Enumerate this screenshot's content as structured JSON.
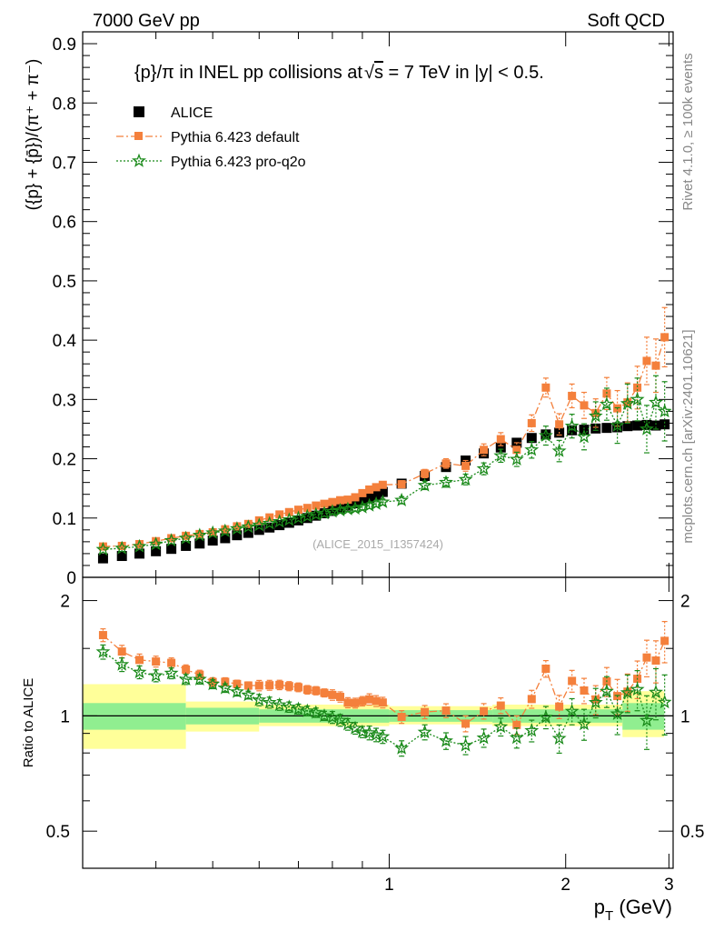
{
  "header": {
    "left": "7000 GeV pp",
    "right": "Soft QCD"
  },
  "side_labels": {
    "rivet": "Rivet 4.1.0, ≥ 100k events",
    "mcplots": "mcplots.cern.ch [arXiv:2401.10621]"
  },
  "chart_data": [
    {
      "type": "scatter",
      "panel": "main",
      "title_parts": [
        "{p}/π in INEL pp collisions at",
        "√",
        "s",
        " =  7 TeV in |y| < 0.5."
      ],
      "ylabel": "({p} + {p̄})/(π⁺ + π⁻)",
      "xlabel_parts": [
        "p",
        "T",
        " (GeV)"
      ],
      "watermark": "(ALICE_2015_I1357424)",
      "xlim": [
        0.3,
        3.05
      ],
      "ylim": [
        0,
        0.92
      ],
      "x_scale": "log",
      "y_ticks": [
        0,
        0.1,
        0.2,
        0.3,
        0.4,
        0.5,
        0.6,
        0.7,
        0.8,
        0.9
      ],
      "y_tick_labels": [
        "0",
        "0.1",
        "0.2",
        "0.3",
        "0.4",
        "0.5",
        "0.6",
        "0.7",
        "0.8",
        "0.9"
      ],
      "x_ticks": [
        1,
        2,
        3
      ],
      "x_tick_labels": [
        "1",
        "2",
        "3"
      ],
      "legend": [
        "ALICE",
        "Pythia 6.423 default",
        "Pythia 6.423 pro-q2o"
      ],
      "x": [
        0.325,
        0.35,
        0.375,
        0.4,
        0.425,
        0.45,
        0.475,
        0.5,
        0.525,
        0.55,
        0.575,
        0.6,
        0.625,
        0.65,
        0.675,
        0.7,
        0.725,
        0.75,
        0.775,
        0.8,
        0.825,
        0.85,
        0.875,
        0.9,
        0.925,
        0.95,
        0.975,
        1.05,
        1.15,
        1.25,
        1.35,
        1.45,
        1.55,
        1.65,
        1.75,
        1.85,
        1.95,
        2.05,
        2.15,
        2.25,
        2.35,
        2.45,
        2.55,
        2.65,
        2.75,
        2.85,
        2.95
      ],
      "series": [
        {
          "name": "ALICE",
          "color": "#000000",
          "values": [
            0.032,
            0.036,
            0.04,
            0.044,
            0.048,
            0.053,
            0.057,
            0.062,
            0.066,
            0.071,
            0.075,
            0.08,
            0.084,
            0.088,
            0.092,
            0.096,
            0.1,
            0.104,
            0.108,
            0.112,
            0.116,
            0.121,
            0.125,
            0.13,
            0.134,
            0.139,
            0.144,
            0.158,
            0.171,
            0.186,
            0.197,
            0.209,
            0.219,
            0.227,
            0.235,
            0.241,
            0.244,
            0.248,
            0.249,
            0.251,
            0.252,
            0.253,
            0.255,
            0.256,
            0.257,
            0.256,
            0.258
          ]
        },
        {
          "name": "Pythia 6.423 default",
          "color": "#f4803c",
          "values": [
            0.052,
            0.053,
            0.056,
            0.061,
            0.066,
            0.07,
            0.073,
            0.076,
            0.081,
            0.086,
            0.09,
            0.096,
            0.101,
            0.106,
            0.11,
            0.114,
            0.117,
            0.121,
            0.124,
            0.127,
            0.13,
            0.131,
            0.135,
            0.142,
            0.148,
            0.152,
            0.156,
            0.157,
            0.175,
            0.192,
            0.188,
            0.215,
            0.233,
            0.215,
            0.26,
            0.32,
            0.258,
            0.306,
            0.29,
            0.277,
            0.31,
            0.285,
            0.295,
            0.32,
            0.365,
            0.357,
            0.405
          ],
          "errors": [
            0.002,
            0.002,
            0.002,
            0.002,
            0.002,
            0.002,
            0.002,
            0.002,
            0.002,
            0.002,
            0.002,
            0.003,
            0.003,
            0.003,
            0.003,
            0.003,
            0.003,
            0.003,
            0.003,
            0.004,
            0.004,
            0.004,
            0.004,
            0.004,
            0.005,
            0.005,
            0.005,
            0.006,
            0.007,
            0.008,
            0.009,
            0.01,
            0.011,
            0.012,
            0.014,
            0.016,
            0.018,
            0.02,
            0.022,
            0.024,
            0.027,
            0.03,
            0.033,
            0.036,
            0.04,
            0.045,
            0.05
          ]
        },
        {
          "name": "Pythia 6.423 pro-q2o",
          "color": "#1a8a1a",
          "values": [
            0.047,
            0.049,
            0.052,
            0.056,
            0.062,
            0.066,
            0.071,
            0.075,
            0.078,
            0.082,
            0.085,
            0.088,
            0.091,
            0.094,
            0.097,
            0.1,
            0.103,
            0.106,
            0.108,
            0.111,
            0.113,
            0.115,
            0.116,
            0.118,
            0.121,
            0.124,
            0.127,
            0.13,
            0.155,
            0.16,
            0.165,
            0.183,
            0.205,
            0.199,
            0.215,
            0.239,
            0.213,
            0.255,
            0.237,
            0.272,
            0.292,
            0.256,
            0.293,
            0.3,
            0.25,
            0.295,
            0.28
          ],
          "errors": [
            0.002,
            0.002,
            0.002,
            0.002,
            0.002,
            0.002,
            0.002,
            0.002,
            0.002,
            0.002,
            0.002,
            0.003,
            0.003,
            0.003,
            0.003,
            0.003,
            0.003,
            0.003,
            0.003,
            0.004,
            0.004,
            0.004,
            0.004,
            0.004,
            0.005,
            0.005,
            0.005,
            0.006,
            0.007,
            0.008,
            0.009,
            0.01,
            0.011,
            0.012,
            0.014,
            0.016,
            0.018,
            0.02,
            0.022,
            0.024,
            0.027,
            0.03,
            0.033,
            0.036,
            0.04,
            0.045,
            0.05
          ]
        }
      ]
    },
    {
      "type": "scatter",
      "panel": "ratio",
      "ylabel": "Ratio to ALICE",
      "ylim": [
        0.4,
        2.3
      ],
      "y_scale": "log",
      "y_ticks": [
        0.5,
        1,
        2
      ],
      "y_tick_labels": [
        "0.5",
        "1",
        "2"
      ],
      "reference_line": 1.0,
      "uncertainty_bands": {
        "inner_color": "#90ee90",
        "outer_color": "#ffff99",
        "edges": [
          0.3,
          0.45,
          0.6,
          1.0,
          1.5,
          2.5,
          3.0
        ],
        "inner_low": [
          0.92,
          0.95,
          0.96,
          0.965,
          0.96,
          0.92
        ],
        "inner_high": [
          1.08,
          1.05,
          1.04,
          1.035,
          1.04,
          1.08
        ],
        "outer_low": [
          0.82,
          0.91,
          0.94,
          0.95,
          0.94,
          0.88
        ],
        "outer_high": [
          1.21,
          1.09,
          1.07,
          1.06,
          1.07,
          1.16
        ]
      }
    }
  ]
}
